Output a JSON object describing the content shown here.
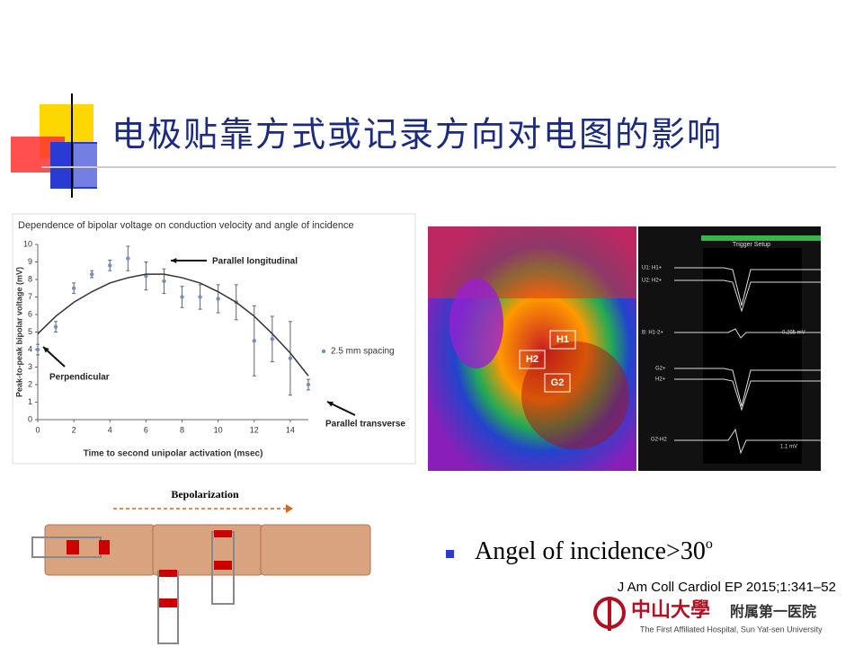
{
  "slide": {
    "title": "电极贴靠方式或记录方向对电图的影响",
    "bullet_text": "Angel of incidence>30",
    "bullet_sup": "o",
    "citation": "J Am Coll Cardiol EP 2015;1:341–52",
    "diagram_label": "Bepolarization",
    "map_labels": [
      "H1",
      "H2",
      "G2"
    ],
    "egm_header": "Trigger Setup",
    "egm_channels": [
      "U1: H1+",
      "U2: H2+",
      "B: H1-2+",
      "G2+",
      "H2+",
      "G2-H2"
    ],
    "egm_values": [
      "0.295 mV",
      "1.1 mV"
    ],
    "logo_name": "中山大學",
    "logo_sub": "附属第一医院",
    "logo_en": "The First Affiliated Hospital, Sun Yat-sen University"
  },
  "chart_data": {
    "type": "scatter",
    "title": "Dependence of bipolar voltage on conduction velocity and angle of incidence",
    "x_label": "Time to second unipolar activation (msec)",
    "y_label": "Peak-to-peak bipolar voltage (mV)",
    "x": [
      0,
      1,
      2,
      3,
      4,
      5,
      6,
      7,
      8,
      9,
      10,
      11,
      12,
      13,
      14,
      15
    ],
    "series": [
      {
        "name": "2.5 mm spacing",
        "color": "#6f8fc9",
        "values": [
          4.0,
          5.3,
          7.5,
          8.3,
          8.8,
          9.2,
          8.2,
          7.9,
          7.0,
          7.0,
          6.9,
          6.7,
          4.5,
          4.6,
          3.5,
          2.0
        ],
        "errors": [
          0.3,
          0.3,
          0.3,
          0.2,
          0.3,
          0.7,
          0.8,
          0.7,
          0.6,
          0.7,
          0.8,
          1.0,
          2.0,
          1.3,
          2.1,
          0.3
        ]
      },
      {
        "color": "#333333",
        "values": [
          4.9,
          5.9,
          6.7,
          7.3,
          7.8,
          8.1,
          8.3,
          8.3,
          8.1,
          7.8,
          7.3,
          6.7,
          5.9,
          4.9,
          3.8,
          2.5
        ]
      }
    ],
    "xlim": [
      0,
      15
    ],
    "ylim": [
      0,
      10
    ],
    "xticks": [
      0,
      2,
      4,
      6,
      8,
      10,
      12,
      14
    ],
    "yticks": [
      0,
      1,
      2,
      3,
      4,
      5,
      6,
      7,
      8,
      9,
      10
    ],
    "legend": "right",
    "annotations": [
      "Parallel longitudinal",
      "Perpendicular",
      "Parallel transverse"
    ]
  }
}
